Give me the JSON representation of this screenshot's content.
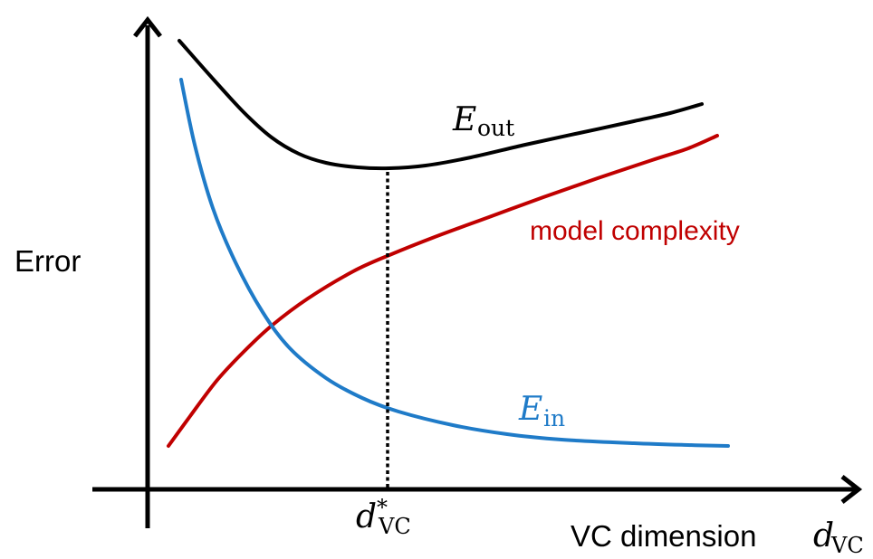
{
  "chart_data": {
    "type": "line",
    "title": "",
    "ylabel": "Error",
    "xlabel_text": "VC dimension",
    "xlabel_var": "d",
    "xlabel_sub": "VC",
    "optimum_label": {
      "var": "d",
      "sup": "*",
      "sub": "VC"
    },
    "grid": false,
    "legend": "none",
    "series": [
      {
        "key": "E_out",
        "name_var": "E",
        "name_sub": "out",
        "color": "#000000",
        "points": [
          [
            198,
            45
          ],
          [
            235,
            87
          ],
          [
            270,
            125
          ],
          [
            300,
            152
          ],
          [
            330,
            170
          ],
          [
            360,
            180
          ],
          [
            395,
            185
          ],
          [
            430,
            186
          ],
          [
            470,
            183
          ],
          [
            520,
            174
          ],
          [
            580,
            160
          ],
          [
            640,
            147
          ],
          [
            700,
            134
          ],
          [
            740,
            125
          ],
          [
            775,
            115
          ]
        ]
      },
      {
        "key": "model_complexity",
        "name": "model complexity",
        "color": "#c00000",
        "points": [
          [
            186,
            493
          ],
          [
            210,
            460
          ],
          [
            240,
            420
          ],
          [
            270,
            388
          ],
          [
            300,
            360
          ],
          [
            340,
            330
          ],
          [
            390,
            300
          ],
          [
            430,
            282
          ],
          [
            480,
            262
          ],
          [
            540,
            240
          ],
          [
            600,
            218
          ],
          [
            660,
            197
          ],
          [
            720,
            177
          ],
          [
            760,
            164
          ],
          [
            792,
            150
          ]
        ]
      },
      {
        "key": "E_in",
        "name_var": "E",
        "name_sub": "in",
        "color": "#1f7bc8",
        "points": [
          [
            200,
            88
          ],
          [
            215,
            160
          ],
          [
            235,
            230
          ],
          [
            260,
            290
          ],
          [
            290,
            345
          ],
          [
            320,
            385
          ],
          [
            360,
            418
          ],
          [
            400,
            440
          ],
          [
            440,
            455
          ],
          [
            500,
            470
          ],
          [
            560,
            480
          ],
          [
            620,
            486
          ],
          [
            700,
            490
          ],
          [
            760,
            492
          ],
          [
            804,
            493
          ]
        ]
      }
    ],
    "axis_color": "#000000",
    "optimum_line_style": "dotted"
  }
}
